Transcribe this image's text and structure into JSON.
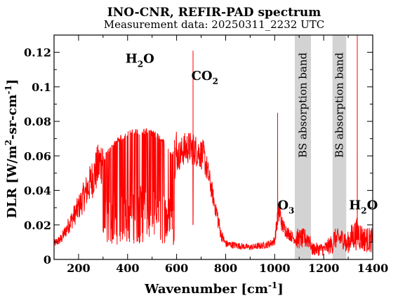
{
  "chart_data": {
    "type": "line",
    "title": "INO-CNR, REFIR-PAD spectrum",
    "subtitle": "Measurement data: 20250311_2232 UTC",
    "xlabel": {
      "main": "Wavenumber [cm",
      "sup": "-1",
      "tail": "]"
    },
    "ylabel": {
      "p1": "DLR [W/m",
      "sup1": "2",
      "p2": "-sr-cm",
      "sup2": "-1",
      "p3": "]"
    },
    "xlim": [
      100,
      1400
    ],
    "ylim": [
      0,
      0.13
    ],
    "x_ticks": [
      200,
      400,
      600,
      800,
      1000,
      1200,
      1400
    ],
    "y_ticks": [
      0,
      0.02,
      0.04,
      0.06,
      0.08,
      0.1,
      0.12
    ],
    "y_tick_labels": [
      "0",
      "0.02",
      "0.04",
      "0.06",
      "0.08",
      "0.1",
      "0.12"
    ],
    "grid": false,
    "series_color": "#ff0000",
    "band_color": "#d3d3d3",
    "envelope": {
      "x": [
        100,
        130,
        160,
        200,
        240,
        280,
        320,
        360,
        400,
        440,
        480,
        520,
        560,
        590,
        610,
        630,
        650,
        670,
        690,
        710,
        725,
        740,
        760,
        780,
        800,
        850,
        900,
        950,
        980,
        1000,
        1010,
        1020,
        1030,
        1050,
        1080,
        1100,
        1150,
        1200,
        1230,
        1250,
        1290,
        1300,
        1320,
        1340,
        1360,
        1400
      ],
      "y": [
        0.009,
        0.012,
        0.02,
        0.03,
        0.042,
        0.054,
        0.064,
        0.071,
        0.075,
        0.076,
        0.076,
        0.074,
        0.068,
        0.062,
        0.064,
        0.068,
        0.069,
        0.068,
        0.066,
        0.064,
        0.055,
        0.045,
        0.03,
        0.015,
        0.009,
        0.008,
        0.007,
        0.008,
        0.009,
        0.011,
        0.022,
        0.028,
        0.02,
        0.016,
        0.012,
        0.01,
        0.007,
        0.007,
        0.01,
        0.012,
        0.008,
        0.012,
        0.016,
        0.018,
        0.014,
        0.013
      ]
    },
    "spikes": [
      {
        "x": 667,
        "y": 0.121
      },
      {
        "x": 1012,
        "y": 0.085
      },
      {
        "x": 1337,
        "y": 0.13
      }
    ],
    "bands": [
      {
        "x0": 1082,
        "x1": 1148,
        "label": "BS absorption band"
      },
      {
        "x0": 1236,
        "x1": 1292,
        "label": "BS absorption band"
      }
    ],
    "annotations": [
      {
        "text": "H",
        "sub": "2",
        "tail": "O",
        "x": 450,
        "y": 0.114
      },
      {
        "text": "CO",
        "sub": "2",
        "tail": "",
        "x": 715,
        "y": 0.104
      },
      {
        "text": "O",
        "sub": "3",
        "tail": "",
        "x": 1046,
        "y": 0.029
      },
      {
        "text": "H",
        "sub": "2",
        "tail": "O",
        "x": 1362,
        "y": 0.029
      }
    ]
  }
}
